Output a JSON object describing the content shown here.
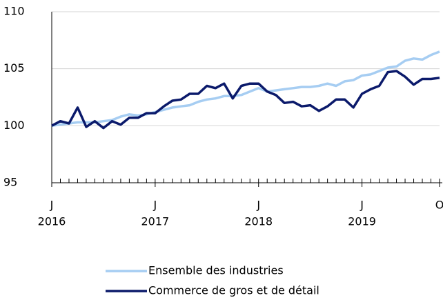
{
  "chart_data": {
    "type": "line",
    "categories": [
      "J",
      null,
      null,
      null,
      null,
      null,
      null,
      null,
      null,
      null,
      null,
      null,
      "J",
      null,
      null,
      null,
      null,
      null,
      null,
      null,
      null,
      null,
      null,
      null,
      "J",
      null,
      null,
      null,
      null,
      null,
      null,
      null,
      null,
      null,
      null,
      null,
      "J",
      null,
      null,
      null,
      null,
      null,
      null,
      null,
      null,
      "O"
    ],
    "year_labels": [
      "2016",
      "2017",
      "2018",
      "2019"
    ],
    "series": [
      {
        "name": "Ensemble des industries",
        "color": "#a6cdf2",
        "values": [
          100.0,
          100.1,
          100.2,
          100.3,
          100.3,
          100.3,
          100.4,
          100.5,
          100.8,
          101.0,
          100.9,
          101.0,
          101.2,
          101.4,
          101.6,
          101.7,
          101.8,
          102.1,
          102.3,
          102.4,
          102.6,
          102.6,
          102.7,
          103.0,
          103.3,
          103.0,
          103.1,
          103.2,
          103.3,
          103.4,
          103.4,
          103.5,
          103.7,
          103.5,
          103.9,
          104.0,
          104.4,
          104.5,
          104.8,
          105.1,
          105.2,
          105.7,
          105.9,
          105.8,
          106.2,
          106.5
        ]
      },
      {
        "name": "Commerce de gros et de détail",
        "color": "#0b1a6b",
        "values": [
          100.0,
          100.4,
          100.2,
          101.6,
          99.9,
          100.4,
          99.8,
          100.4,
          100.1,
          100.7,
          100.7,
          101.1,
          101.1,
          101.7,
          102.2,
          102.3,
          102.8,
          102.8,
          103.5,
          103.3,
          103.7,
          102.4,
          103.5,
          103.7,
          103.7,
          103.0,
          102.7,
          102.0,
          102.1,
          101.7,
          101.8,
          101.3,
          101.7,
          102.3,
          102.3,
          101.6,
          102.8,
          103.2,
          103.5,
          104.7,
          104.8,
          104.3,
          103.6,
          104.1,
          104.1,
          104.2
        ]
      }
    ],
    "ylim": [
      95,
      110
    ],
    "yticks": [
      95,
      100,
      105,
      110
    ],
    "grid": true,
    "legend": "bottom"
  }
}
